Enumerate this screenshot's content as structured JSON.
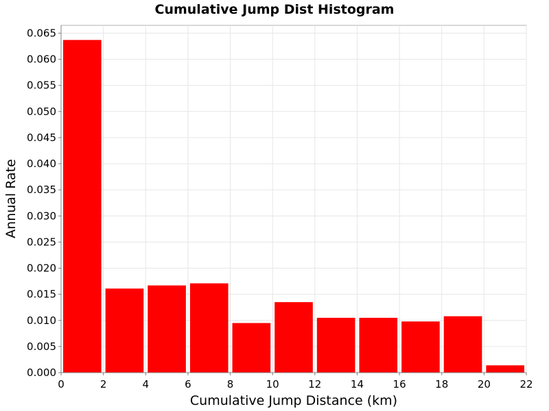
{
  "chart_data": {
    "type": "bar",
    "title": "Cumulative Jump Dist Histogram",
    "xlabel": "Cumulative Jump Distance (km)",
    "ylabel": "Annual Rate",
    "xlim": [
      0,
      22
    ],
    "ylim": [
      0,
      0.0665
    ],
    "bin_width": 2,
    "bins_start": [
      0,
      2,
      4,
      6,
      8,
      10,
      12,
      14,
      16,
      18,
      20
    ],
    "values": [
      0.0637,
      0.0161,
      0.0167,
      0.0171,
      0.0095,
      0.0135,
      0.0105,
      0.0105,
      0.0098,
      0.0108,
      0.0014
    ],
    "x_ticks": [
      0,
      2,
      4,
      6,
      8,
      10,
      12,
      14,
      16,
      18,
      20,
      22
    ],
    "x_tick_labels": [
      "0",
      "2",
      "4",
      "6",
      "8",
      "10",
      "12",
      "14",
      "16",
      "18",
      "20",
      "22"
    ],
    "y_ticks": [
      0,
      0.005,
      0.01,
      0.015,
      0.02,
      0.025,
      0.03,
      0.035,
      0.04,
      0.045,
      0.05,
      0.055,
      0.06,
      0.065
    ],
    "y_tick_labels": [
      "0.000",
      "0.005",
      "0.010",
      "0.015",
      "0.020",
      "0.025",
      "0.030",
      "0.035",
      "0.040",
      "0.045",
      "0.050",
      "0.055",
      "0.060",
      "0.065"
    ],
    "grid": true,
    "legend": "none",
    "bar_color": "#ff0000"
  }
}
